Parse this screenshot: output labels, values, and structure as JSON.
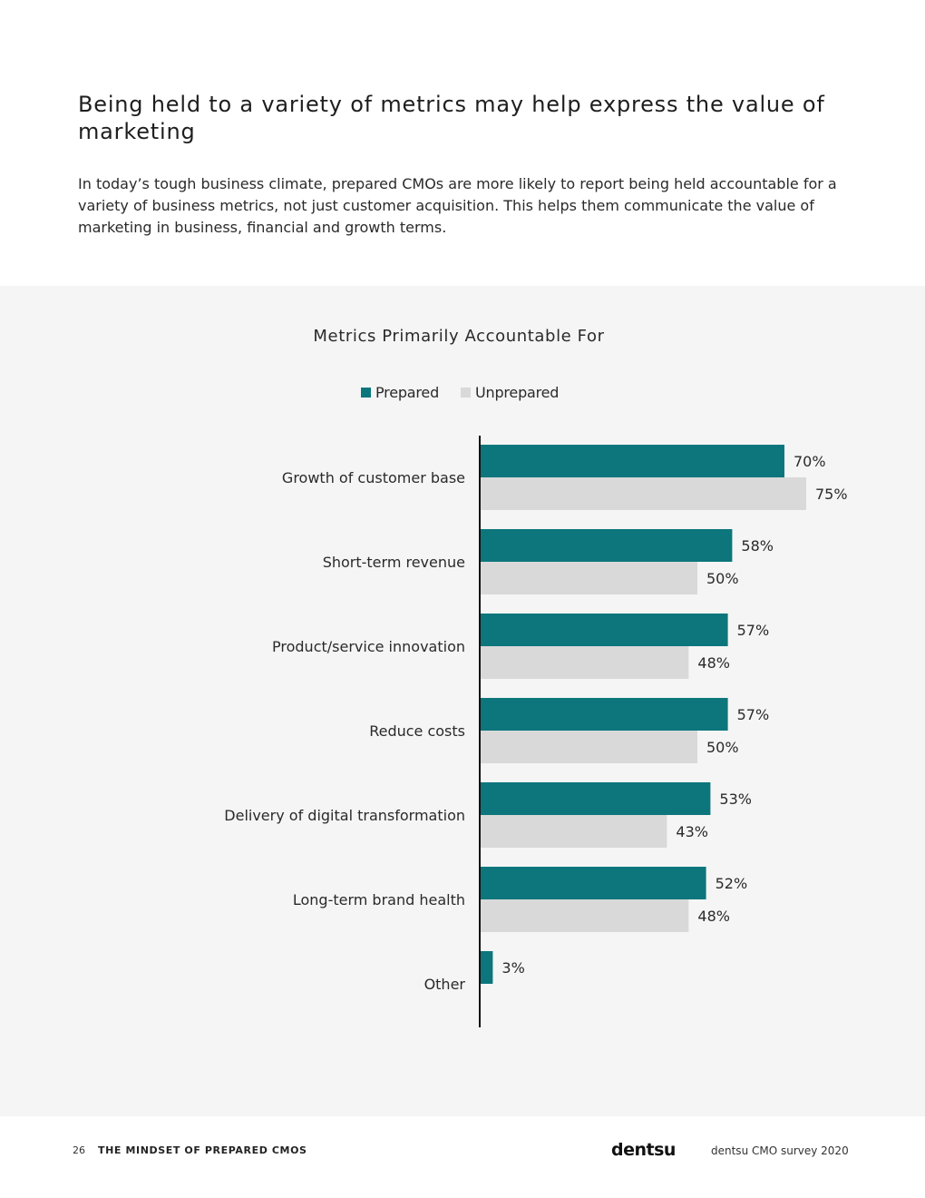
{
  "page": {
    "heading": "Being held to a variety of metrics may help express the value of marketing",
    "intro": "In today’s tough business climate, prepared CMOs are more likely to report being held accountable for a variety of business metrics, not just customer acquisition. This helps them communicate the value of marketing in business, financial and growth terms."
  },
  "colors": {
    "prepared": "#0c767c",
    "unprepared": "#d9d9d9",
    "panel": "#f5f5f5"
  },
  "chart_data": {
    "type": "bar",
    "orientation": "horizontal",
    "title": "Metrics Primarily Accountable For",
    "legend_placement": "top",
    "grid": false,
    "xlim": [
      0,
      100
    ],
    "value_suffix": "%",
    "categories": [
      "Growth of customer base",
      "Short-term revenue",
      "Product/service innovation",
      "Reduce costs",
      "Delivery of digital transformation",
      "Long-term brand health",
      "Other"
    ],
    "series": [
      {
        "name": "Prepared",
        "color": "#0c767c",
        "values": [
          70,
          58,
          57,
          57,
          53,
          52,
          3
        ]
      },
      {
        "name": "Unprepared",
        "color": "#d9d9d9",
        "values": [
          75,
          50,
          48,
          50,
          43,
          48,
          null
        ]
      }
    ]
  },
  "footer": {
    "page_number": "26",
    "section_title": "THE MINDSET OF PREPARED CMOS",
    "logo": "dentsu",
    "survey": "dentsu CMO survey 2020"
  }
}
